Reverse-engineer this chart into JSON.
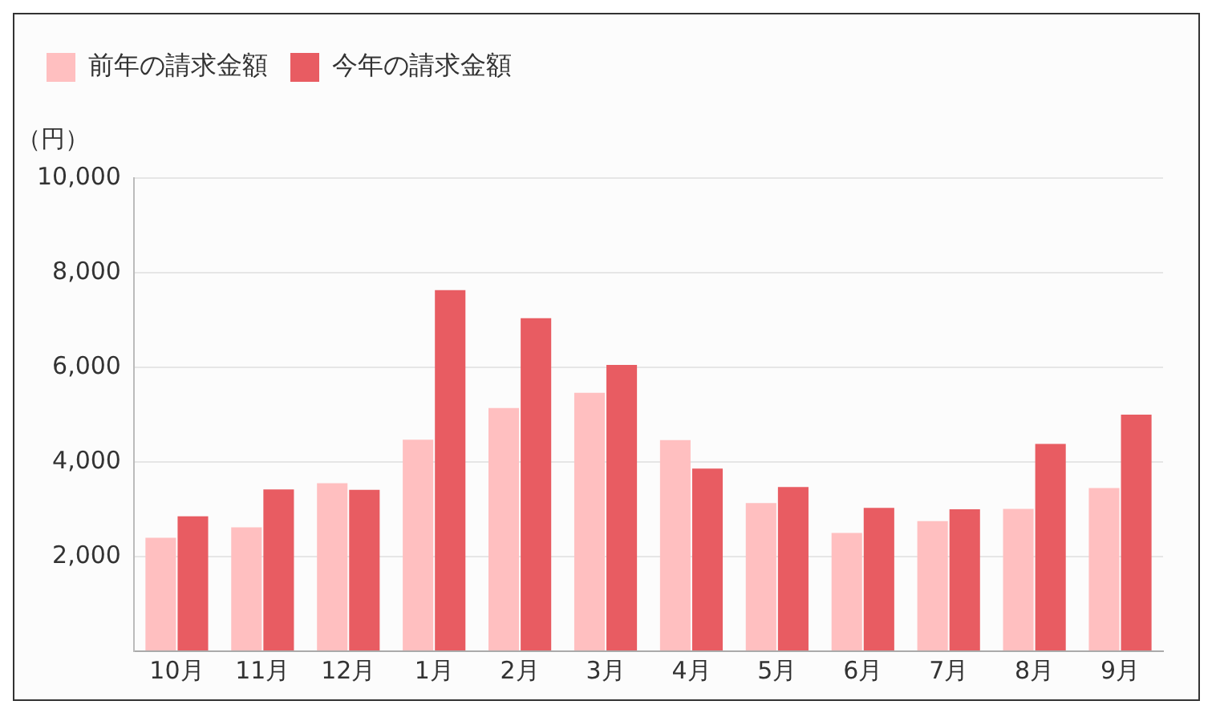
{
  "chart_data": {
    "type": "bar",
    "categories": [
      "10月",
      "11月",
      "12月",
      "1月",
      "2月",
      "3月",
      "4月",
      "5月",
      "6月",
      "7月",
      "8月",
      "9月"
    ],
    "series": [
      {
        "name": "前年の請求金額",
        "color": "#ffbfc0",
        "values": [
          2400,
          2620,
          3550,
          4470,
          5140,
          5460,
          4460,
          3130,
          2500,
          2750,
          3010,
          3450
        ]
      },
      {
        "name": "今年の請求金額",
        "color": "#e85c62",
        "values": [
          2850,
          3420,
          3410,
          7630,
          7040,
          6050,
          3860,
          3470,
          3030,
          3000,
          4380,
          5000
        ]
      }
    ],
    "ylabel": "（円）",
    "ylim": [
      0,
      10000
    ],
    "yticks": [
      {
        "value": 0,
        "label": null
      },
      {
        "value": 2000,
        "label": "2,000"
      },
      {
        "value": 4000,
        "label": "4,000"
      },
      {
        "value": 6000,
        "label": "6,000"
      },
      {
        "value": 8000,
        "label": "8,000"
      },
      {
        "value": 10000,
        "label": "10,000"
      }
    ],
    "grid": "y",
    "legend": "top left"
  }
}
